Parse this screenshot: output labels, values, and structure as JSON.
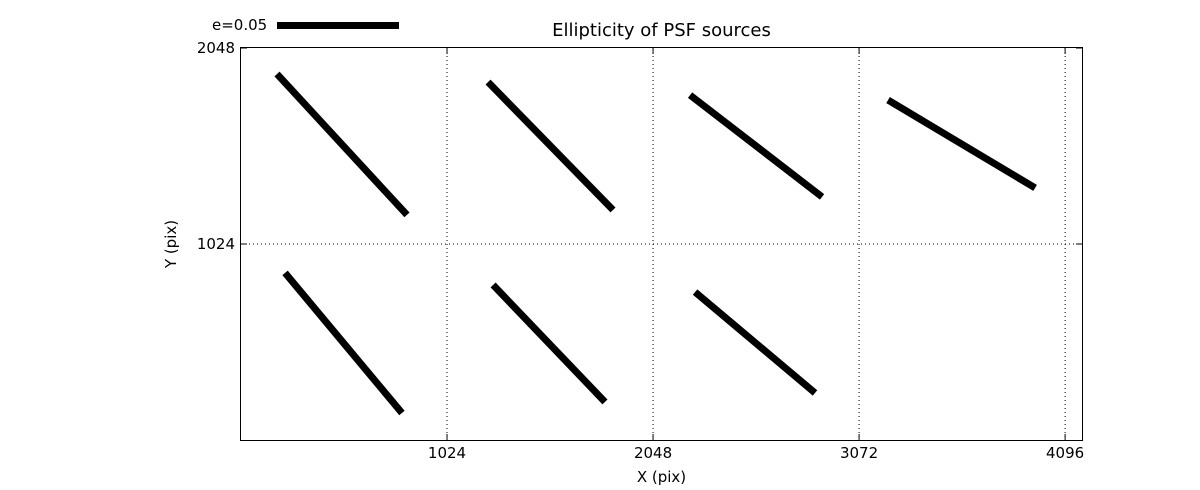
{
  "figure": {
    "background_color": "#ffffff",
    "foreground_color": "#000000"
  },
  "chart_data": {
    "type": "whisker",
    "title": "Ellipticity of PSF sources",
    "xlabel": "X (pix)",
    "ylabel": "Y (pix)",
    "xlim": [
      0,
      4180
    ],
    "ylim": [
      0,
      2048
    ],
    "xticks": [
      1024,
      2048,
      3072,
      4096
    ],
    "yticks": [
      1024,
      2048
    ],
    "grid": {
      "style": "dotted",
      "x": [
        1024,
        2048,
        3072,
        4096
      ],
      "y": [
        1024
      ]
    },
    "legend": {
      "label": "e=0.05",
      "key_value": 0.05,
      "position": "top-left-above-axes"
    },
    "line_color": "#000000",
    "line_width": 7,
    "whiskers": [
      {
        "x1": 179,
        "y1": 1912,
        "x2": 825,
        "y2": 1176,
        "center_x": 512,
        "center_y": 1536,
        "e": 0.079
      },
      {
        "x1": 1228,
        "y1": 1870,
        "x2": 1849,
        "y2": 1202,
        "center_x": 1536,
        "center_y": 1536,
        "e": 0.073
      },
      {
        "x1": 2232,
        "y1": 1802,
        "x2": 2888,
        "y2": 1270,
        "center_x": 2560,
        "center_y": 1536,
        "e": 0.068
      },
      {
        "x1": 3216,
        "y1": 1776,
        "x2": 3947,
        "y2": 1317,
        "center_x": 3584,
        "center_y": 1536,
        "e": 0.07
      },
      {
        "x1": 219,
        "y1": 873,
        "x2": 800,
        "y2": 141,
        "center_x": 512,
        "center_y": 512,
        "e": 0.075
      },
      {
        "x1": 1253,
        "y1": 810,
        "x2": 1809,
        "y2": 199,
        "center_x": 1536,
        "center_y": 512,
        "e": 0.066
      },
      {
        "x1": 2257,
        "y1": 773,
        "x2": 2853,
        "y2": 246,
        "center_x": 2560,
        "center_y": 512,
        "e": 0.064
      }
    ]
  }
}
